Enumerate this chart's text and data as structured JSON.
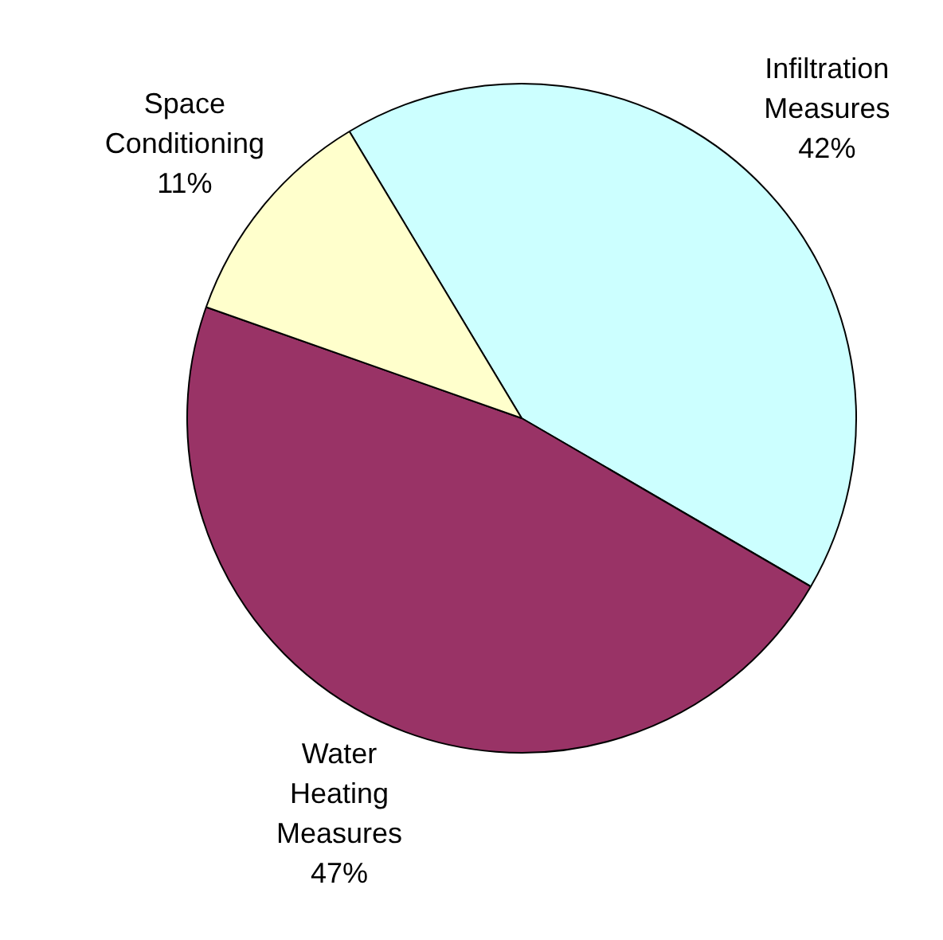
{
  "chart_data": {
    "type": "pie",
    "categories": [
      "Infiltration Measures",
      "Water Heating Measures",
      "Space Conditioning"
    ],
    "values": [
      42,
      47,
      11
    ],
    "value_labels": [
      "42%",
      "47%",
      "11%"
    ],
    "colors": [
      "#ccffff",
      "#993366",
      "#ffffcc"
    ]
  }
}
